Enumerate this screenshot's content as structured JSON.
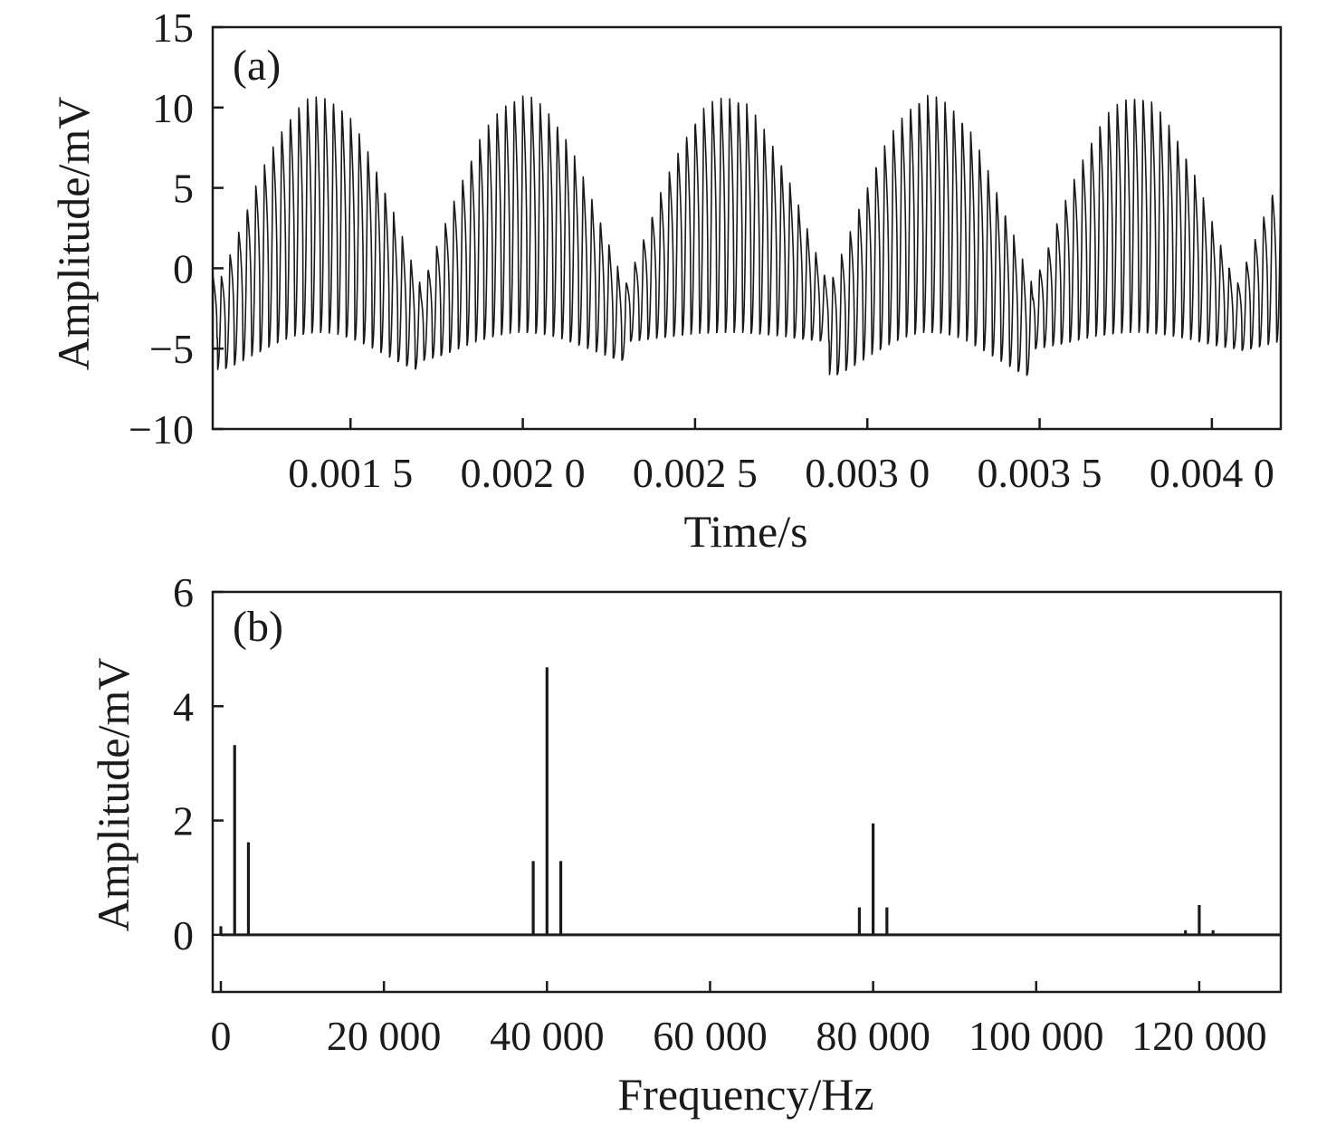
{
  "chart_data": [
    {
      "panel_label": "(a)",
      "type": "line",
      "xlabel": "Time/s",
      "ylabel": "Amplitude/mV",
      "xlim": [
        0.0011,
        0.0042
      ],
      "ylim": [
        -10,
        15
      ],
      "x_ticks": [
        0.0015,
        0.002,
        0.0025,
        0.003,
        0.0035,
        0.004
      ],
      "x_tick_labels": [
        "0.001 5",
        "0.002 0",
        "0.002 5",
        "0.003 0",
        "0.003 5",
        "0.004 0"
      ],
      "y_ticks": [
        -10,
        -5,
        0,
        5,
        10,
        15
      ],
      "y_tick_labels": [
        "−10",
        "−5",
        "0",
        "5",
        "10",
        "15"
      ],
      "grid": false,
      "series": [
        {
          "color": "#1a1a1a",
          "signal": {
            "envelope_peak_times": [
              0.00141,
              0.002,
              0.00259,
              0.00319,
              0.00378
            ],
            "envelope_trough_times": [
              0.0011,
              0.0017,
              0.00229,
              0.00289,
              0.00348,
              0.00408
            ],
            "peak_amplitude": 10.8,
            "trough_baseline_high": -1.0,
            "trough_baseline_low": -6.8,
            "lower_swing_at_crest": -4.0,
            "modulation_frequency_hz": 1690,
            "carrier_frequency_hz": 40000
          }
        }
      ]
    },
    {
      "panel_label": "(b)",
      "type": "line",
      "xlabel": "Frequency/Hz",
      "ylabel": "Amplitude/mV",
      "xlim": [
        -1000,
        130000
      ],
      "ylim": [
        -1,
        6
      ],
      "x_ticks": [
        0,
        20000,
        40000,
        60000,
        80000,
        100000,
        120000
      ],
      "x_tick_labels": [
        "0",
        "20 000",
        "40 000",
        "60 000",
        "80 000",
        "100 000",
        "120 000"
      ],
      "y_ticks": [
        0,
        2,
        4,
        6
      ],
      "y_tick_labels": [
        "0",
        "2",
        "4",
        "6"
      ],
      "grid": false,
      "series": [
        {
          "color": "#1a1a1a",
          "peaks": [
            {
              "x": 0,
              "y": 0.15
            },
            {
              "x": 1690,
              "y": 3.32
            },
            {
              "x": 3380,
              "y": 1.62
            },
            {
              "x": 38310,
              "y": 1.29
            },
            {
              "x": 40000,
              "y": 4.68
            },
            {
              "x": 41690,
              "y": 1.29
            },
            {
              "x": 78310,
              "y": 0.48
            },
            {
              "x": 80000,
              "y": 1.95
            },
            {
              "x": 81690,
              "y": 0.48
            },
            {
              "x": 118310,
              "y": 0.08
            },
            {
              "x": 120000,
              "y": 0.52
            },
            {
              "x": 121690,
              "y": 0.08
            }
          ]
        }
      ]
    }
  ]
}
